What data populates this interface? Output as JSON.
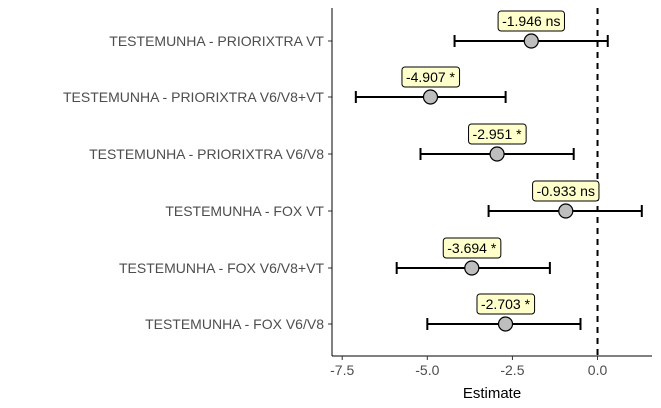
{
  "chart_data": {
    "type": "forest",
    "xlabel": "Estimate",
    "xlim": [
      -7.8,
      1.6
    ],
    "xticks": [
      -7.5,
      -5.0,
      -2.5,
      0.0
    ],
    "xtick_labels": [
      "-7.5",
      "-5.0",
      "-2.5",
      "0.0"
    ],
    "reference_line": 0,
    "colors": {
      "point_fill": "#bebebe",
      "label_fill": "#ffffcc",
      "axis": "#000000",
      "tick_text": "#4d4d4d"
    },
    "rows": [
      {
        "comparison": "TESTEMUNHA  -  PRIORIXTRA VT",
        "estimate": -1.946,
        "ci_low": -4.2,
        "ci_high": 0.3,
        "label": "-1.946 ns"
      },
      {
        "comparison": "TESTEMUNHA  -  PRIORIXTRA V6/V8+VT",
        "estimate": -4.907,
        "ci_low": -7.1,
        "ci_high": -2.7,
        "label": "-4.907 *"
      },
      {
        "comparison": "TESTEMUNHA  -  PRIORIXTRA V6/V8",
        "estimate": -2.951,
        "ci_low": -5.2,
        "ci_high": -0.7,
        "label": "-2.951 *"
      },
      {
        "comparison": "TESTEMUNHA  -  FOX VT",
        "estimate": -0.933,
        "ci_low": -3.2,
        "ci_high": 1.3,
        "label": "-0.933 ns"
      },
      {
        "comparison": "TESTEMUNHA  -  FOX V6/V8+VT",
        "estimate": -3.694,
        "ci_low": -5.9,
        "ci_high": -1.4,
        "label": "-3.694 *"
      },
      {
        "comparison": "TESTEMUNHA  -  FOX V6/V8",
        "estimate": -2.703,
        "ci_low": -5.0,
        "ci_high": -0.5,
        "label": "-2.703 *"
      }
    ]
  }
}
